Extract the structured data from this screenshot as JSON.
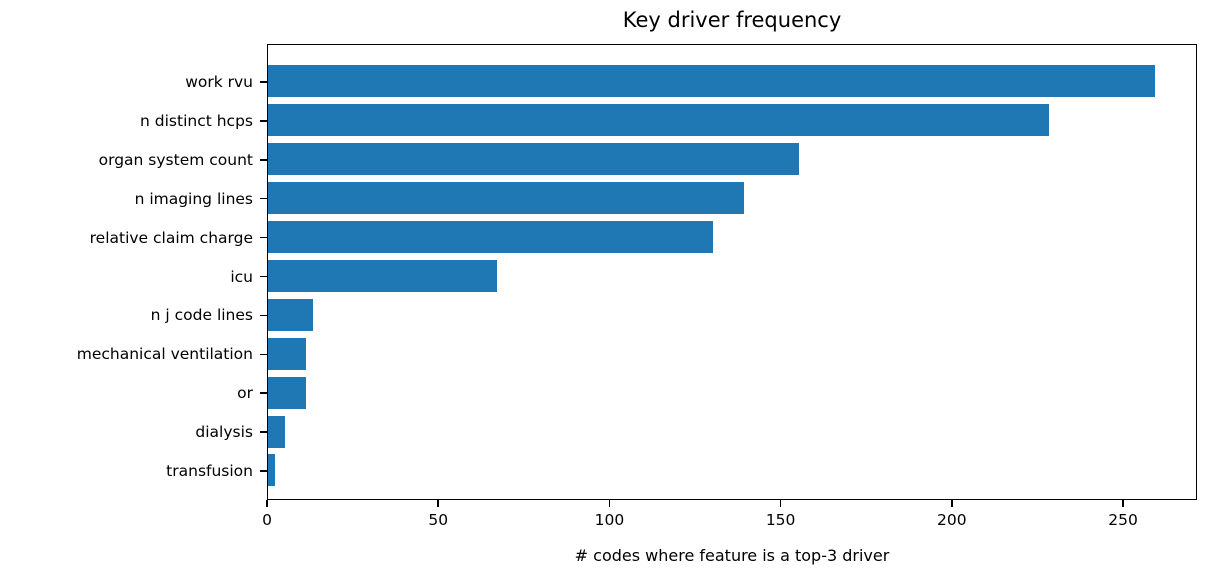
{
  "chart_data": {
    "type": "bar",
    "orientation": "horizontal",
    "title": "Key driver frequency",
    "xlabel": "# codes where feature is a top-3 driver",
    "ylabel": "",
    "categories": [
      "work rvu",
      "n distinct hcps",
      "organ system count",
      "n imaging lines",
      "relative claim charge",
      "icu",
      "n j code lines",
      "mechanical ventilation",
      "or",
      "dialysis",
      "transfusion"
    ],
    "values": [
      259,
      228,
      155,
      139,
      130,
      67,
      13,
      11,
      11,
      5,
      2
    ],
    "xticks": [
      0,
      50,
      100,
      150,
      200,
      250
    ],
    "xlim": [
      0,
      271.6
    ],
    "grid": false,
    "legend": null,
    "colors": {
      "bar": "#1f77b4",
      "text": "#000000",
      "spine": "#000000",
      "background": "#ffffff"
    }
  }
}
